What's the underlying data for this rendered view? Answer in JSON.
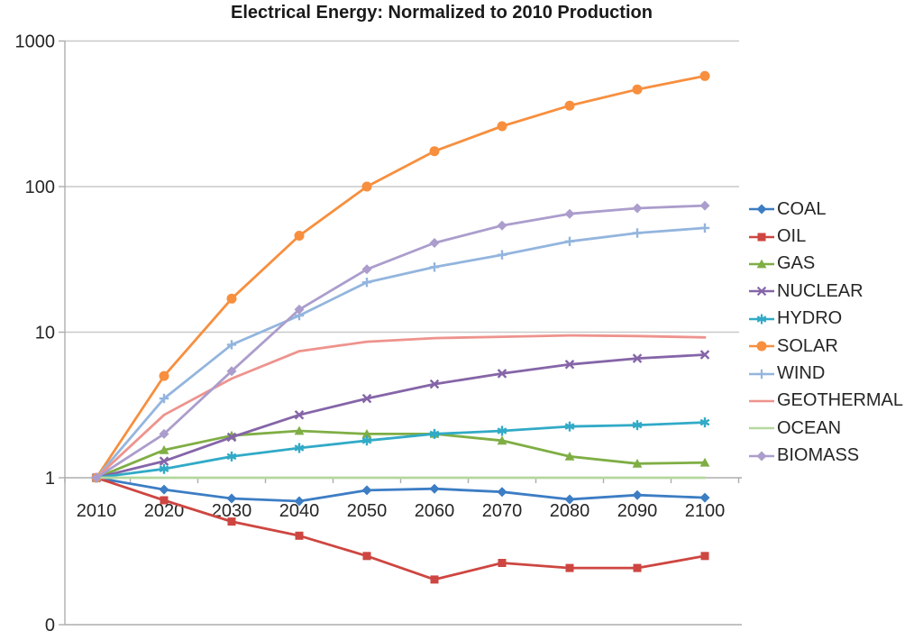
{
  "chart_data": {
    "type": "line",
    "title": "Electrical Energy: Normalized to 2010 Production",
    "xlabel": "",
    "ylabel": "",
    "x_categories": [
      "2010",
      "2020",
      "2030",
      "2040",
      "2050",
      "2060",
      "2070",
      "2080",
      "2090",
      "2100"
    ],
    "y_axis": {
      "scale": "log",
      "tick_labels": [
        "1000",
        "100",
        "10",
        "1",
        "0"
      ],
      "gridline_values": [
        1000,
        100,
        10,
        1
      ],
      "axis_crosses_at": 1
    },
    "grid": true,
    "legend_position": "right",
    "series": [
      {
        "name": "COAL",
        "color": "#3C7DC4",
        "marker": "diamond",
        "values": [
          1,
          0.83,
          0.72,
          0.69,
          0.82,
          0.84,
          0.8,
          0.71,
          0.76,
          0.73
        ]
      },
      {
        "name": "OIL",
        "color": "#CE4641",
        "marker": "square",
        "values": [
          1,
          0.7,
          0.5,
          0.4,
          0.29,
          0.2,
          0.26,
          0.24,
          0.24,
          0.29
        ]
      },
      {
        "name": "GAS",
        "color": "#7FAE45",
        "marker": "triangle",
        "values": [
          1,
          1.55,
          1.95,
          2.1,
          2.0,
          2.0,
          1.8,
          1.4,
          1.25,
          1.27
        ]
      },
      {
        "name": "NUCLEAR",
        "color": "#8565A8",
        "marker": "x",
        "values": [
          1,
          1.3,
          1.9,
          2.7,
          3.5,
          4.4,
          5.2,
          6.0,
          6.6,
          7.0
        ]
      },
      {
        "name": "HYDRO",
        "color": "#31AAC7",
        "marker": "asterisk",
        "values": [
          1,
          1.15,
          1.4,
          1.6,
          1.8,
          2.0,
          2.1,
          2.25,
          2.3,
          2.4
        ]
      },
      {
        "name": "SOLAR",
        "color": "#F78F3E",
        "marker": "circle",
        "values": [
          1,
          5,
          17,
          46,
          100,
          175,
          260,
          360,
          465,
          575
        ]
      },
      {
        "name": "WIND",
        "color": "#93B5DE",
        "marker": "plus",
        "values": [
          1,
          3.5,
          8.2,
          13,
          22,
          28,
          34,
          42,
          48,
          52
        ]
      },
      {
        "name": "GEOTHERMAL",
        "color": "#EE938D",
        "marker": "none",
        "values": [
          1,
          2.7,
          4.8,
          7.4,
          8.6,
          9.1,
          9.3,
          9.5,
          9.4,
          9.2
        ]
      },
      {
        "name": "OCEAN",
        "color": "#B4D79E",
        "marker": "none",
        "values": [
          1,
          1,
          1,
          1,
          1,
          1,
          1,
          1,
          1,
          1
        ]
      },
      {
        "name": "BIOMASS",
        "color": "#AB9DCC",
        "marker": "diamond",
        "values": [
          1,
          2.0,
          5.4,
          14.3,
          27,
          41,
          54,
          65,
          71,
          74
        ]
      }
    ]
  }
}
